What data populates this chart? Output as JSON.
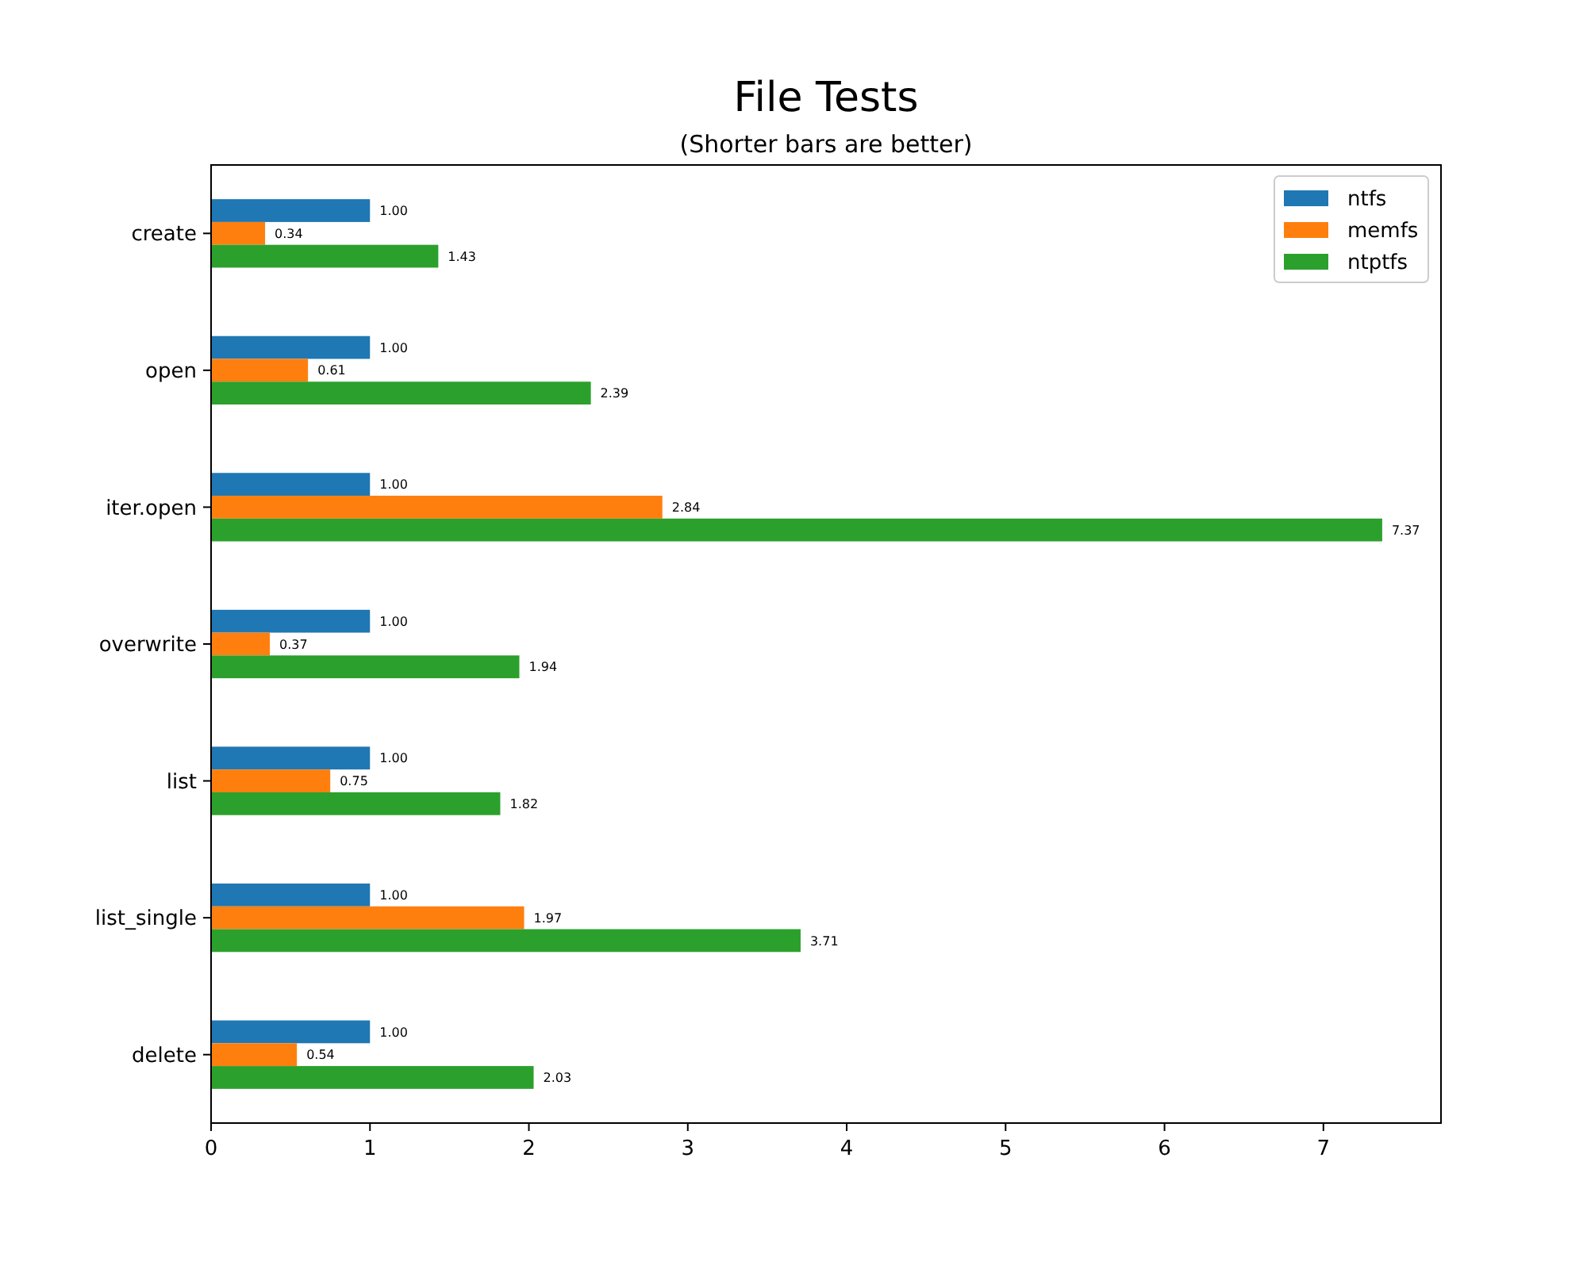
{
  "chart_data": {
    "type": "bar",
    "orientation": "horizontal",
    "title": "File Tests",
    "subtitle": "(Shorter bars are better)",
    "categories": [
      "create",
      "open",
      "iter.open",
      "overwrite",
      "list",
      "list_single",
      "delete"
    ],
    "series": [
      {
        "name": "ntfs",
        "color": "#1f77b4",
        "values": [
          1.0,
          1.0,
          1.0,
          1.0,
          1.0,
          1.0,
          1.0
        ],
        "value_labels": [
          "1.00",
          "1.00",
          "1.00",
          "1.00",
          "1.00",
          "1.00",
          "1.00"
        ]
      },
      {
        "name": "memfs",
        "color": "#ff7f0e",
        "values": [
          0.34,
          0.61,
          2.84,
          0.37,
          0.75,
          1.97,
          0.54
        ],
        "value_labels": [
          "0.34",
          "0.61",
          "2.84",
          "0.37",
          "0.75",
          "1.97",
          "0.54"
        ]
      },
      {
        "name": "ntptfs",
        "color": "#2ca02c",
        "values": [
          1.43,
          2.39,
          7.37,
          1.94,
          1.82,
          3.71,
          2.03
        ],
        "value_labels": [
          "1.43",
          "2.39",
          "7.37",
          "1.94",
          "1.82",
          "3.71",
          "2.03"
        ]
      }
    ],
    "xlim": [
      0,
      7.74
    ],
    "xticks": [
      0,
      1,
      2,
      3,
      4,
      5,
      6,
      7
    ],
    "legend": "top right",
    "grid": false
  }
}
